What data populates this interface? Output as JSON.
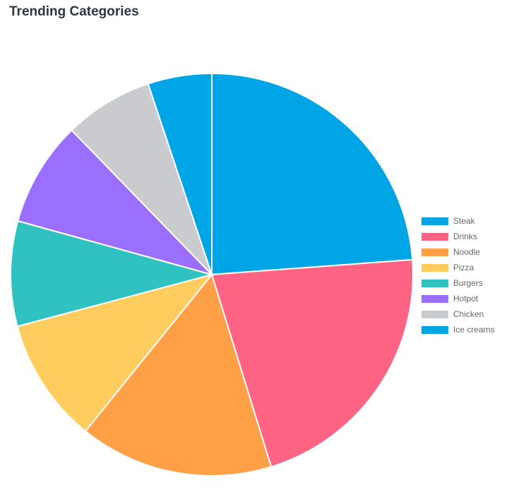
{
  "title": "Trending Categories",
  "chart_data": {
    "type": "pie",
    "title": "Trending Categories",
    "legend_position": "right",
    "categories": [
      "Steak",
      "Drinks",
      "Noodle",
      "Pizza",
      "Burgers",
      "Hotpot",
      "Chicken",
      "Ice creams"
    ],
    "values": [
      23.7,
      21.3,
      15.5,
      10.0,
      8.4,
      8.4,
      7.1,
      5.1
    ],
    "colors": [
      "#00a5e6",
      "#ff6384",
      "#ff9f46",
      "#ffcd5e",
      "#2fc2c0",
      "#9a6ffe",
      "#c9cbcf",
      "#00a5e6"
    ]
  }
}
